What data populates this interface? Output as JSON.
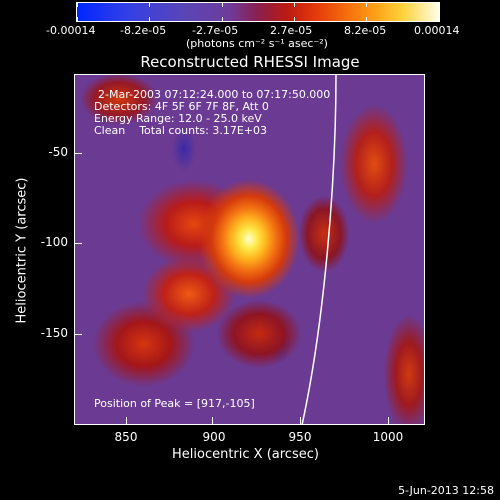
{
  "colorbar": {
    "tick_labels": [
      "-0.00014",
      "-8.2e-05",
      "-2.7e-05",
      "2.7e-05",
      "8.2e-05",
      "0.00014"
    ],
    "unit_label": "(photons cm⁻² s⁻¹ asec⁻²)"
  },
  "chart_data": {
    "type": "heatmap",
    "title": "Reconstructed RHESSI Image",
    "xlabel": "Heliocentric X (arcsec)",
    "ylabel": "Heliocentric Y (arcsec)",
    "xlim": [
      822,
      1013
    ],
    "ylim": [
      -198,
      -7
    ],
    "x_ticks": [
      "850",
      "900",
      "950",
      "1000"
    ],
    "x_tick_values": [
      850,
      900,
      950,
      1000
    ],
    "y_ticks": [
      "-50",
      "-100",
      "-150"
    ],
    "y_tick_values": [
      -50,
      -100,
      -150
    ],
    "color_range": [
      -0.00014,
      0.00014
    ],
    "peak": [
      917,
      -105
    ],
    "annotations": {
      "time_range": "2-Mar-2003 07:12:24.000 to 07:17:50.000",
      "detectors": "Detectors: 4F 5F 6F 7F 8F, Att 0",
      "energy": "Energy Range: 12.0 - 25.0 keV",
      "method": "Clean    Total counts: 3.17E+03",
      "peak_text": "Position of Peak = [917,-105]"
    }
  },
  "footer": {
    "date": "5-Jun-2013 12:58"
  }
}
